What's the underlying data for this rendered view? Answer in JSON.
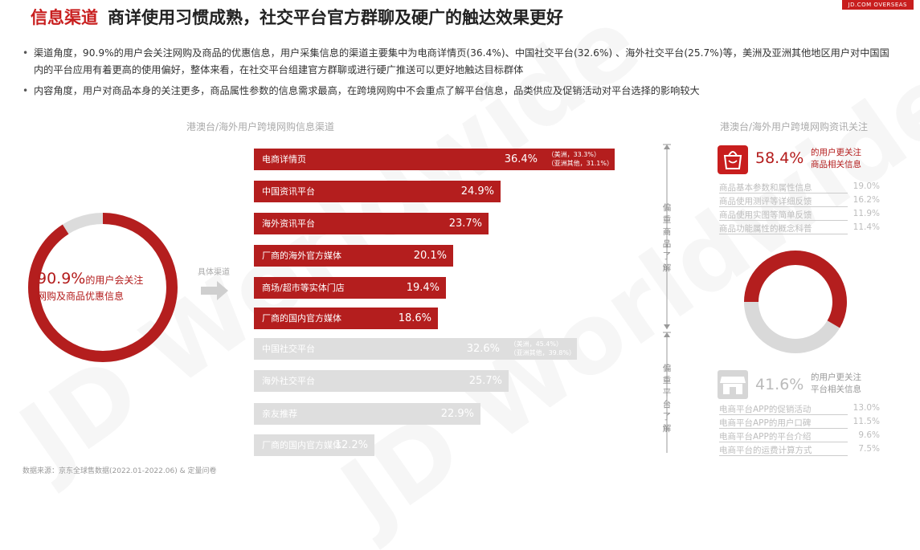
{
  "header": {
    "title_highlight": "信息渠道",
    "title_rest": "商详使用习惯成熟，社交平台官方群聊及硬广的触达效果更好",
    "brand": "JD.COM OVERSEAS"
  },
  "bullets": [
    "渠道角度，90.9%的用户会关注网购及商品的优惠信息，用户采集信息的渠道主要集中为电商详情页(36.4%)、中国社交平台(32.6%) 、海外社交平台(25.7%)等，美洲及亚洲其他地区用户对中国国内的平台应用有着更高的使用偏好，整体来看，在社交平台组建官方群聊或进行硬广推送可以更好地触达目标群体",
    "内容角度，用户对商品本身的关注更多，商品属性参数的信息需求最高，在跨境网购中不会重点了解平台信息，品类供应及促销活动对平台选择的影响较大"
  ],
  "left": {
    "donut_value": "90.9%",
    "donut_text_1": "的用户会关注",
    "donut_text_2": "网购及商品优惠信息",
    "donut_fraction": 0.909,
    "arrow_label": "具体渠道"
  },
  "middle": {
    "subtitle": "港澳台/海外用户跨境网购信息渠道",
    "label_top": "偏重商品了解",
    "label_bottom": "偏重平台了解"
  },
  "right": {
    "subtitle": "港澳台/海外用户跨境网购资讯关注",
    "group1": {
      "pct": "58.4%",
      "text1": "的用户更关注",
      "text2": "商品相关信息",
      "items": [
        {
          "name": "商品基本参数和属性信息",
          "value": "19.0%"
        },
        {
          "name": "商品使用测评等详细反馈",
          "value": "16.2%"
        },
        {
          "name": "商品使用实图等简单反馈",
          "value": "11.9%"
        },
        {
          "name": "商品功能属性的概念科普",
          "value": "11.4%"
        }
      ]
    },
    "group2": {
      "pct": "41.6%",
      "text1": "的用户更关注",
      "text2": "平台相关信息",
      "items": [
        {
          "name": "电商平台APP的促销活动",
          "value": "13.0%"
        },
        {
          "name": "电商平台APP的用户口碑",
          "value": "11.5%"
        },
        {
          "name": "电商平台APP的平台介绍",
          "value": "9.6%"
        },
        {
          "name": "电商平台的运费计算方式",
          "value": "7.5%"
        }
      ]
    },
    "ring_fraction": 0.584
  },
  "chart_data": {
    "type": "bar",
    "title": "港澳台/海外用户跨境网购信息渠道",
    "categories": [
      "电商详情页",
      "中国资讯平台",
      "海外资讯平台",
      "厂商的海外官方媒体",
      "商场/超市等实体门店",
      "厂商的国内官方媒体",
      "中国社交平台",
      "海外社交平台",
      "亲友推荐",
      "厂商的国内官方媒体"
    ],
    "values": [
      36.4,
      24.9,
      23.7,
      20.1,
      19.4,
      18.6,
      32.6,
      25.7,
      22.9,
      12.2
    ],
    "value_labels": [
      "36.4%",
      "24.9%",
      "23.7%",
      "20.1%",
      "19.4%",
      "18.6%",
      "32.6%",
      "25.7%",
      "22.9%",
      "12.2%"
    ],
    "groups": [
      "top",
      "top",
      "top",
      "top",
      "top",
      "top",
      "bottom",
      "bottom",
      "bottom",
      "bottom"
    ],
    "notes": {
      "0": [
        "（美洲，33.3%）",
        "（亚洲其他，31.1%）"
      ],
      "6": [
        "（美洲，45.4%）",
        "（亚洲其他，39.8%）"
      ]
    },
    "colors": {
      "top": "#b41e1e",
      "bottom": "#dedede"
    }
  },
  "source": "数据来源：京东全球售数据(2022.01-2022.06) & 定量问卷",
  "watermark": "JD Worldwide"
}
